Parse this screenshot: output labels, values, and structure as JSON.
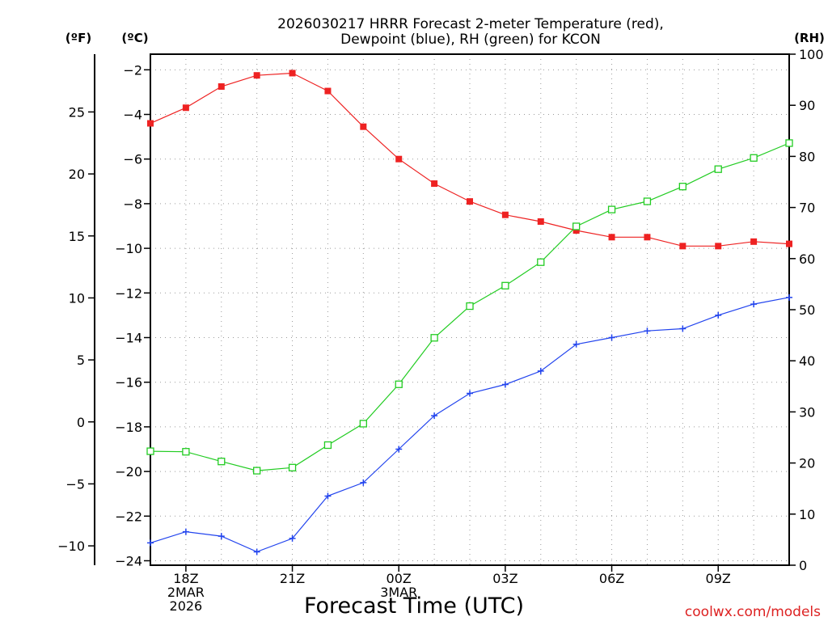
{
  "chart_data": {
    "type": "line",
    "title_line1": "2026030217 HRRR Forecast 2-meter Temperature (red),",
    "title_line2": "Dewpoint (blue), RH (green) for KCON",
    "xlabel": "Forecast Time (UTC)",
    "credit": "coolwx.com/models",
    "unit_labels": {
      "fahrenheit": "(ºF)",
      "celsius": "(ºC)",
      "rh": "(RH)"
    },
    "hours": [
      17,
      18,
      19,
      20,
      21,
      22,
      23,
      24,
      25,
      26,
      27,
      28,
      29,
      30,
      31,
      32,
      33,
      34,
      35
    ],
    "x_range": [
      17,
      35
    ],
    "x_ticks": [
      {
        "hour": 18,
        "lines": [
          "18Z",
          "2MAR",
          "2026"
        ]
      },
      {
        "hour": 21,
        "lines": [
          "21Z"
        ]
      },
      {
        "hour": 24,
        "lines": [
          "00Z",
          "3MAR"
        ]
      },
      {
        "hour": 27,
        "lines": [
          "03Z"
        ]
      },
      {
        "hour": 30,
        "lines": [
          "06Z"
        ]
      },
      {
        "hour": 33,
        "lines": [
          "09Z"
        ]
      }
    ],
    "celsius_axis": {
      "range": [
        -24.2,
        -1.3
      ],
      "ticks": [
        -2,
        -4,
        -6,
        -8,
        -10,
        -12,
        -14,
        -16,
        -18,
        -20,
        -22,
        -24
      ]
    },
    "fahrenheit_axis": {
      "ticks": [
        25,
        20,
        15,
        10,
        5,
        0,
        -5,
        -10
      ]
    },
    "rh_axis": {
      "range": [
        0,
        100
      ],
      "ticks": [
        100,
        90,
        80,
        70,
        60,
        50,
        40,
        30,
        20,
        10,
        0
      ]
    },
    "series": [
      {
        "name": "2-meter Temperature",
        "units": "C",
        "color": "#ee2222",
        "marker": "filled-square",
        "values": [
          -4.4,
          -3.7,
          -2.75,
          -2.25,
          -2.15,
          -2.95,
          -4.55,
          -6.0,
          -7.1,
          -7.9,
          -8.5,
          -8.8,
          -9.2,
          -9.5,
          -9.5,
          -9.9,
          -9.9,
          -9.7,
          -9.8
        ]
      },
      {
        "name": "Dewpoint",
        "units": "C",
        "color": "#2244ee",
        "marker": "plus",
        "values": [
          -23.2,
          -22.7,
          -22.9,
          -23.6,
          -23.0,
          -21.1,
          -20.5,
          -19.0,
          -17.5,
          -16.5,
          -16.1,
          -15.5,
          -14.3,
          -14.0,
          -13.7,
          -13.6,
          -13.0,
          -12.5,
          -12.2
        ]
      },
      {
        "name": "Relative Humidity",
        "units": "%",
        "color": "#22cc22",
        "marker": "open-square",
        "values": [
          22.3,
          22.2,
          20.3,
          18.5,
          19.1,
          23.5,
          27.7,
          35.4,
          44.5,
          50.7,
          54.7,
          59.3,
          66.3,
          69.6,
          71.2,
          74.1,
          77.5,
          79.7,
          82.6
        ]
      }
    ]
  }
}
